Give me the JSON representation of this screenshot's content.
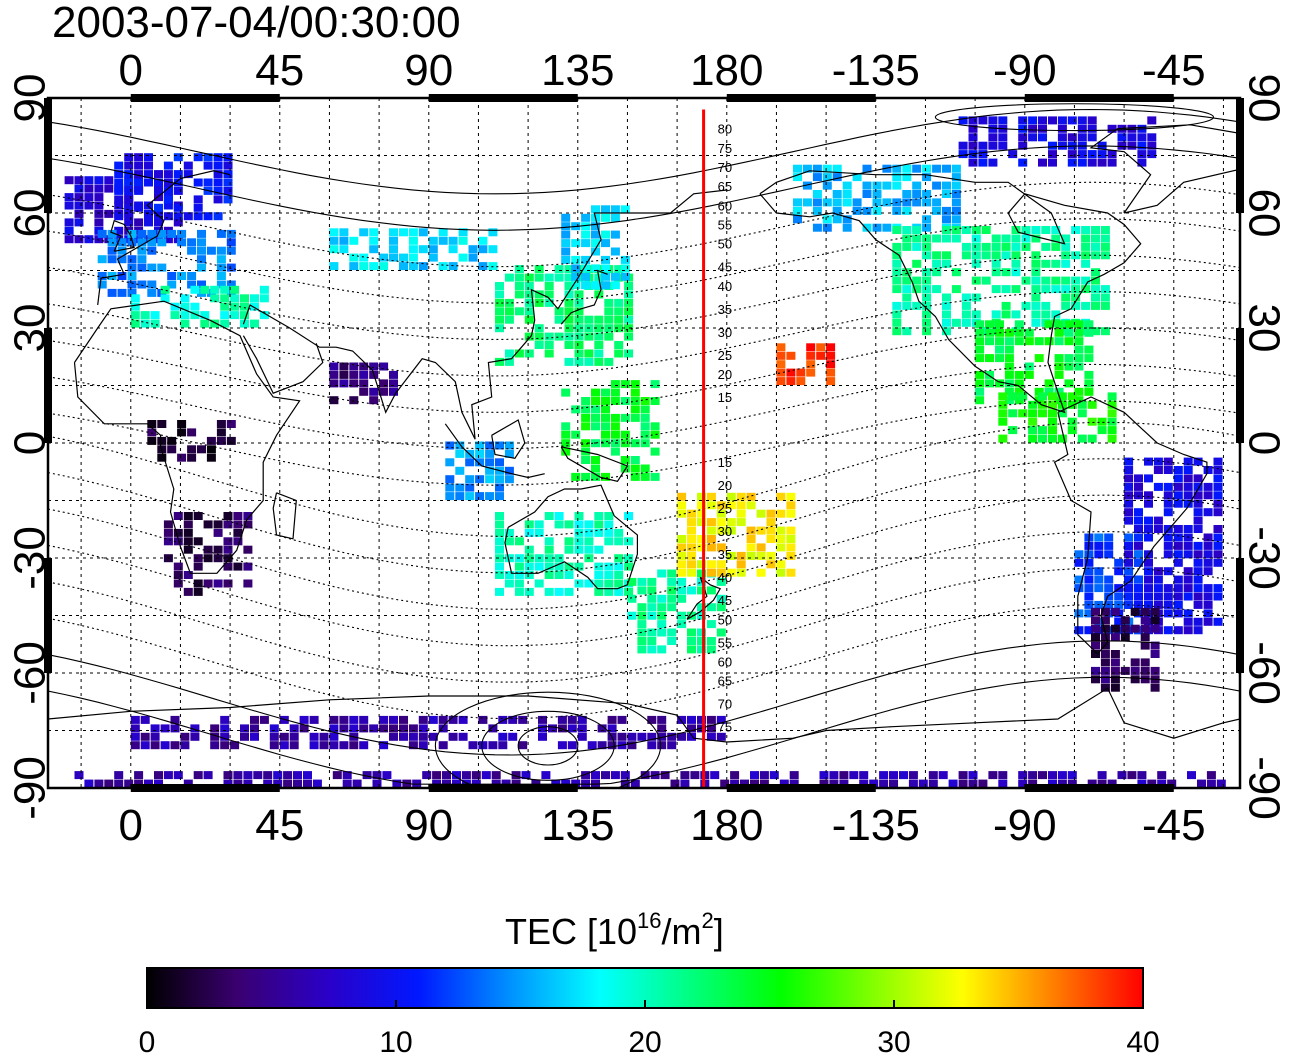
{
  "title": "2003-07-04/00:30:00",
  "map": {
    "projection": "equirectangular",
    "lon_range": [
      -25,
      335
    ],
    "lat_range": [
      -90,
      90
    ],
    "lon_ticks": [
      {
        "value": 0,
        "label": "0"
      },
      {
        "value": 45,
        "label": "45"
      },
      {
        "value": 90,
        "label": "90"
      },
      {
        "value": 135,
        "label": "135"
      },
      {
        "value": 180,
        "label": "180"
      },
      {
        "value": 225,
        "label": "-135"
      },
      {
        "value": 270,
        "label": "-90"
      },
      {
        "value": 315,
        "label": "-45"
      }
    ],
    "lat_ticks": [
      {
        "value": 90,
        "label": "90"
      },
      {
        "value": 60,
        "label": "60"
      },
      {
        "value": 30,
        "label": "30"
      },
      {
        "value": 0,
        "label": "0"
      },
      {
        "value": -30,
        "label": "-30"
      },
      {
        "value": -60,
        "label": "-60"
      },
      {
        "value": -90,
        "label": "-90"
      }
    ],
    "grid": true,
    "grid_spacing_deg": 15,
    "meridian_line": {
      "lon": 173,
      "color": "#ff0000"
    },
    "magnetic_latitude_labels": {
      "north": [
        {
          "label": "80",
          "lat": 82
        },
        {
          "label": "75",
          "lat": 77
        },
        {
          "label": "70",
          "lat": 72
        },
        {
          "label": "65",
          "lat": 67
        },
        {
          "label": "60",
          "lat": 62
        },
        {
          "label": "55",
          "lat": 57
        },
        {
          "label": "50",
          "lat": 52
        },
        {
          "label": "45",
          "lat": 46
        },
        {
          "label": "40",
          "lat": 41
        },
        {
          "label": "35",
          "lat": 35
        },
        {
          "label": "30",
          "lat": 29
        },
        {
          "label": "25",
          "lat": 23
        },
        {
          "label": "20",
          "lat": 18
        },
        {
          "label": "15",
          "lat": 12
        }
      ],
      "south": [
        {
          "label": "15",
          "lat": -5
        },
        {
          "label": "20",
          "lat": -11
        },
        {
          "label": "25",
          "lat": -17
        },
        {
          "label": "30",
          "lat": -23
        },
        {
          "label": "35",
          "lat": -29
        },
        {
          "label": "40",
          "lat": -35
        },
        {
          "label": "45",
          "lat": -41
        },
        {
          "label": "50",
          "lat": -46
        },
        {
          "label": "55",
          "lat": -52
        },
        {
          "label": "60",
          "lat": -57
        },
        {
          "label": "65",
          "lat": -62
        },
        {
          "label": "70",
          "lat": -68
        },
        {
          "label": "75",
          "lat": -74
        }
      ]
    },
    "contour_center": {
      "lon": 126,
      "lat": -79
    },
    "tec_regions": [
      {
        "lon": [
          -20,
          15
        ],
        "lat": [
          52,
          68
        ],
        "tec": 8
      },
      {
        "lon": [
          -10,
          30
        ],
        "lat": [
          38,
          54
        ],
        "tec": 14
      },
      {
        "lon": [
          0,
          40
        ],
        "lat": [
          30,
          40
        ],
        "tec": 20
      },
      {
        "lon": [
          -5,
          30
        ],
        "lat": [
          58,
          75
        ],
        "tec": 10
      },
      {
        "lon": [
          60,
          110
        ],
        "lat": [
          45,
          55
        ],
        "tec": 17
      },
      {
        "lon": [
          110,
          150
        ],
        "lat": [
          20,
          45
        ],
        "tec": 22
      },
      {
        "lon": [
          130,
          150
        ],
        "lat": [
          40,
          60
        ],
        "tec": 17
      },
      {
        "lon": [
          200,
          250
        ],
        "lat": [
          55,
          72
        ],
        "tec": 16
      },
      {
        "lon": [
          230,
          295
        ],
        "lat": [
          28,
          55
        ],
        "tec": 21
      },
      {
        "lon": [
          250,
          310
        ],
        "lat": [
          72,
          85
        ],
        "tec": 9
      },
      {
        "lon": [
          255,
          290
        ],
        "lat": [
          10,
          30
        ],
        "tec": 24
      },
      {
        "lon": [
          262,
          298
        ],
        "lat": [
          0,
          12
        ],
        "tec": 25
      },
      {
        "lon": [
          300,
          330
        ],
        "lat": [
          -50,
          -5
        ],
        "tec": 9
      },
      {
        "lon": [
          285,
          305
        ],
        "lat": [
          -50,
          -25
        ],
        "tec": 12
      },
      {
        "lon": [
          290,
          310
        ],
        "lat": [
          -65,
          -45
        ],
        "tec": 3
      },
      {
        "lon": [
          10,
          35
        ],
        "lat": [
          -40,
          -20
        ],
        "tec": 3
      },
      {
        "lon": [
          5,
          30
        ],
        "lat": [
          -5,
          5
        ],
        "tec": 2
      },
      {
        "lon": [
          110,
          150
        ],
        "lat": [
          -40,
          -20
        ],
        "tec": 20
      },
      {
        "lon": [
          150,
          180
        ],
        "lat": [
          -55,
          -35
        ],
        "tec": 21
      },
      {
        "lon": [
          165,
          200
        ],
        "lat": [
          -35,
          -15
        ],
        "tec": 33
      },
      {
        "lon": [
          195,
          212
        ],
        "lat": [
          15,
          25
        ],
        "tec": 39
      },
      {
        "lon": [
          130,
          160
        ],
        "lat": [
          -10,
          15
        ],
        "tec": 24
      },
      {
        "lon": [
          0,
          180
        ],
        "lat": [
          -80,
          -72
        ],
        "tec": 6
      },
      {
        "lon": [
          -20,
          330
        ],
        "lat": [
          -90,
          -86
        ],
        "tec": 6
      },
      {
        "lon": [
          60,
          80
        ],
        "lat": [
          10,
          20
        ],
        "tec": 4
      },
      {
        "lon": [
          95,
          115
        ],
        "lat": [
          -15,
          0
        ],
        "tec": 15
      }
    ]
  },
  "colorbar": {
    "title_base": "TEC  [10",
    "title_exp1": "16",
    "title_mid": "/m",
    "title_exp2": "2",
    "title_end": "]",
    "min": 0,
    "max": 40,
    "ticks": [
      {
        "value": 0,
        "label": "0"
      },
      {
        "value": 10,
        "label": "10"
      },
      {
        "value": 20,
        "label": "20"
      },
      {
        "value": 30,
        "label": "30"
      },
      {
        "value": 40,
        "label": "40"
      }
    ],
    "stops": [
      "#000000",
      "#3a0070",
      "#2a00c8",
      "#0018ff",
      "#0090ff",
      "#00ffff",
      "#00ff80",
      "#00ff00",
      "#80ff00",
      "#ffff00",
      "#ff8000",
      "#ff0000"
    ]
  }
}
